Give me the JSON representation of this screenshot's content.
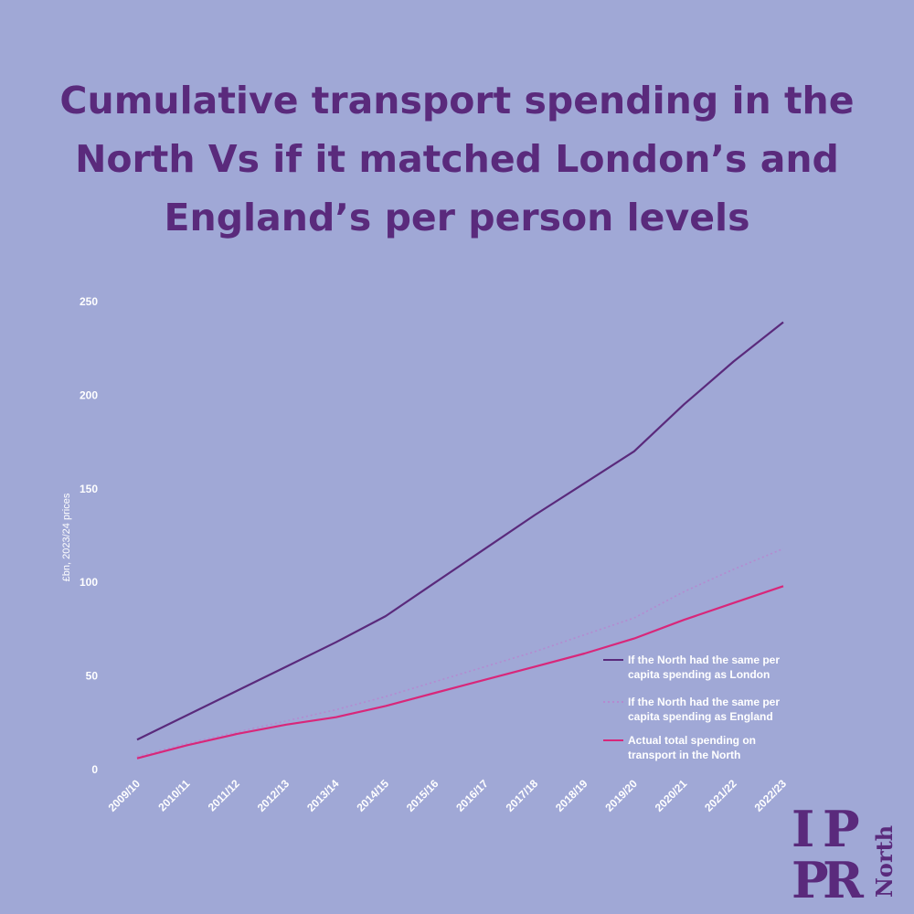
{
  "title": "Cumulative transport spending in the North Vs if it matched London’s and England’s per person levels",
  "colors": {
    "background": "#a0a8d6",
    "title": "#5a2a7c",
    "london": "#5a2a7c",
    "england": "#b48ad0",
    "actual": "#d8277a",
    "text": "#ffffff"
  },
  "logo": {
    "text": "IPPR North",
    "color": "#5a2a7c"
  },
  "chart_data": {
    "type": "line",
    "ylabel": "£bn, 2023/24 prices",
    "xlabel": "",
    "ylim": [
      0,
      250
    ],
    "yticks": [
      0,
      50,
      100,
      150,
      200,
      250
    ],
    "grid": false,
    "legend_position": "bottom-right",
    "categories": [
      "2009/10",
      "2010/11",
      "2011/12",
      "2012/13",
      "2013/14",
      "2014/15",
      "2015/16",
      "2016/17",
      "2017/18",
      "2018/19",
      "2019/20",
      "2020/21",
      "2021/22",
      "2022/23"
    ],
    "series": [
      {
        "name": "If the North had the same per capita spending as London",
        "style": "solid",
        "color": "#5a2a7c",
        "values": [
          16,
          29,
          42,
          55,
          68,
          82,
          100,
          118,
          136,
          153,
          170,
          195,
          218,
          239
        ]
      },
      {
        "name": "If the North had the same per capita spending as England",
        "style": "dotted",
        "color": "#b48ad0",
        "values": [
          7,
          14,
          20,
          26,
          32,
          39,
          47,
          55,
          63,
          72,
          81,
          95,
          107,
          118
        ]
      },
      {
        "name": "Actual total spending on transport in the North",
        "style": "solid",
        "color": "#d8277a",
        "values": [
          6,
          13,
          19,
          24,
          28,
          34,
          41,
          48,
          55,
          62,
          70,
          80,
          89,
          98
        ]
      }
    ]
  }
}
